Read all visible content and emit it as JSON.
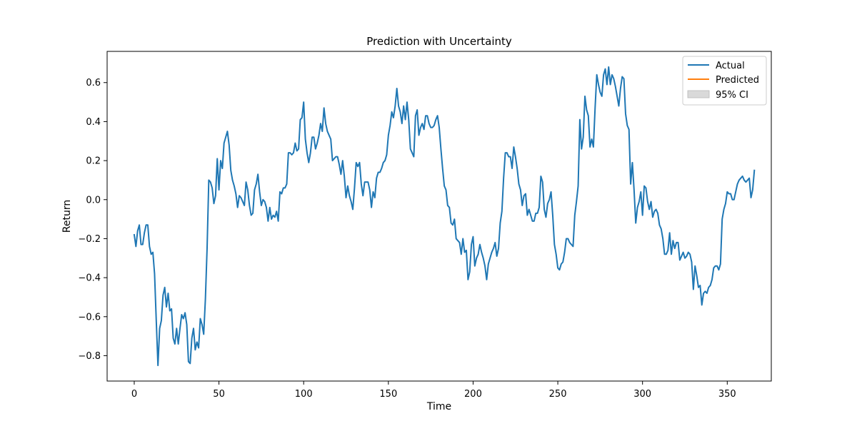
{
  "chart_data": {
    "type": "line",
    "title": "Prediction with Uncertainty",
    "xlabel": "Time",
    "ylabel": "Return",
    "xlim": [
      -16,
      376
    ],
    "ylim": [
      -0.93,
      0.76
    ],
    "xticks": [
      0,
      50,
      100,
      150,
      200,
      250,
      300,
      350
    ],
    "yticks": [
      -0.8,
      -0.6,
      -0.4,
      -0.2,
      0.0,
      0.2,
      0.4,
      0.6
    ],
    "ytick_labels": [
      "−0.8",
      "−0.6",
      "−0.4",
      "−0.2",
      "0.0",
      "0.2",
      "0.4",
      "0.6"
    ],
    "grid": false,
    "legend": {
      "placement": "top-right",
      "entries": [
        {
          "label": "Actual",
          "kind": "line",
          "color": "#1f77b4"
        },
        {
          "label": "Predicted",
          "kind": "line",
          "color": "#ff7f0e"
        },
        {
          "label": "95% CI",
          "kind": "patch",
          "color": "#d9d9d9"
        }
      ]
    },
    "series": [
      {
        "name": "Actual",
        "color": "#1f77b4",
        "x_start": 0,
        "x_step": 1,
        "values": [
          -0.18,
          -0.24,
          -0.16,
          -0.13,
          -0.23,
          -0.23,
          -0.17,
          -0.13,
          -0.13,
          -0.24,
          -0.28,
          -0.27,
          -0.38,
          -0.62,
          -0.85,
          -0.66,
          -0.62,
          -0.49,
          -0.45,
          -0.55,
          -0.48,
          -0.57,
          -0.56,
          -0.71,
          -0.74,
          -0.66,
          -0.74,
          -0.66,
          -0.59,
          -0.61,
          -0.58,
          -0.64,
          -0.83,
          -0.84,
          -0.71,
          -0.66,
          -0.77,
          -0.73,
          -0.76,
          -0.61,
          -0.64,
          -0.69,
          -0.51,
          -0.25,
          0.1,
          0.09,
          0.06,
          -0.02,
          0.02,
          0.21,
          0.05,
          0.2,
          0.16,
          0.29,
          0.32,
          0.35,
          0.28,
          0.15,
          0.1,
          0.07,
          0.03,
          -0.04,
          0.02,
          0.01,
          -0.01,
          -0.03,
          0.09,
          0.05,
          -0.03,
          -0.08,
          -0.07,
          0.05,
          0.08,
          0.13,
          0.04,
          -0.03,
          0.0,
          -0.01,
          -0.04,
          -0.11,
          -0.04,
          -0.1,
          -0.08,
          -0.09,
          -0.06,
          -0.11,
          0.04,
          0.03,
          0.06,
          0.06,
          0.08,
          0.24,
          0.24,
          0.23,
          0.24,
          0.29,
          0.25,
          0.26,
          0.41,
          0.42,
          0.5,
          0.31,
          0.24,
          0.19,
          0.24,
          0.32,
          0.32,
          0.26,
          0.29,
          0.33,
          0.39,
          0.35,
          0.47,
          0.39,
          0.35,
          0.33,
          0.31,
          0.2,
          0.21,
          0.22,
          0.22,
          0.18,
          0.13,
          0.2,
          0.12,
          0.01,
          0.07,
          0.02,
          -0.01,
          -0.05,
          0.06,
          0.19,
          0.17,
          0.19,
          0.08,
          0.02,
          0.09,
          0.09,
          0.09,
          0.05,
          -0.04,
          0.04,
          0.01,
          0.11,
          0.14,
          0.14,
          0.16,
          0.19,
          0.2,
          0.23,
          0.33,
          0.38,
          0.45,
          0.42,
          0.48,
          0.57,
          0.48,
          0.45,
          0.39,
          0.48,
          0.41,
          0.5,
          0.41,
          0.26,
          0.24,
          0.22,
          0.43,
          0.46,
          0.33,
          0.37,
          0.39,
          0.36,
          0.43,
          0.43,
          0.39,
          0.37,
          0.37,
          0.38,
          0.41,
          0.43,
          0.37,
          0.26,
          0.16,
          0.07,
          0.05,
          -0.03,
          -0.04,
          -0.12,
          -0.13,
          -0.1,
          -0.2,
          -0.21,
          -0.22,
          -0.28,
          -0.2,
          -0.27,
          -0.26,
          -0.41,
          -0.37,
          -0.23,
          -0.19,
          -0.34,
          -0.3,
          -0.28,
          -0.23,
          -0.27,
          -0.3,
          -0.34,
          -0.41,
          -0.33,
          -0.3,
          -0.27,
          -0.25,
          -0.22,
          -0.29,
          -0.25,
          -0.12,
          -0.06,
          0.11,
          0.24,
          0.24,
          0.22,
          0.22,
          0.16,
          0.27,
          0.22,
          0.16,
          0.08,
          0.05,
          -0.03,
          0.02,
          0.03,
          -0.08,
          -0.05,
          -0.08,
          -0.11,
          -0.11,
          -0.07,
          -0.07,
          -0.04,
          0.12,
          0.09,
          -0.05,
          -0.09,
          -0.02,
          0.0,
          0.04,
          -0.08,
          -0.23,
          -0.28,
          -0.35,
          -0.36,
          -0.33,
          -0.32,
          -0.27,
          -0.2,
          -0.2,
          -0.22,
          -0.23,
          -0.24,
          -0.08,
          -0.01,
          0.07,
          0.41,
          0.26,
          0.32,
          0.53,
          0.46,
          0.43,
          0.27,
          0.31,
          0.27,
          0.47,
          0.64,
          0.59,
          0.55,
          0.53,
          0.64,
          0.67,
          0.59,
          0.68,
          0.59,
          0.64,
          0.62,
          0.58,
          0.53,
          0.48,
          0.57,
          0.63,
          0.62,
          0.44,
          0.38,
          0.36,
          0.08,
          0.19,
          0.05,
          -0.12,
          -0.04,
          -0.01,
          0.04,
          -0.08,
          0.07,
          0.06,
          -0.01,
          -0.05,
          -0.01,
          -0.09,
          -0.06,
          -0.05,
          -0.07,
          -0.13,
          -0.15,
          -0.2,
          -0.28,
          -0.28,
          -0.26,
          -0.17,
          -0.28,
          -0.21,
          -0.25,
          -0.22,
          -0.22,
          -0.31,
          -0.29,
          -0.27,
          -0.3,
          -0.29,
          -0.27,
          -0.28,
          -0.32,
          -0.46,
          -0.34,
          -0.39,
          -0.45,
          -0.44,
          -0.54,
          -0.48,
          -0.47,
          -0.48,
          -0.45,
          -0.44,
          -0.41,
          -0.35,
          -0.34,
          -0.34,
          -0.36,
          -0.33,
          -0.1,
          -0.05,
          -0.02,
          0.04,
          0.03,
          0.03,
          0.0,
          0.0,
          0.04,
          0.08,
          0.1,
          0.11,
          0.12,
          0.1,
          0.09,
          0.1,
          0.11,
          0.01,
          0.05,
          0.15
        ]
      }
    ]
  }
}
